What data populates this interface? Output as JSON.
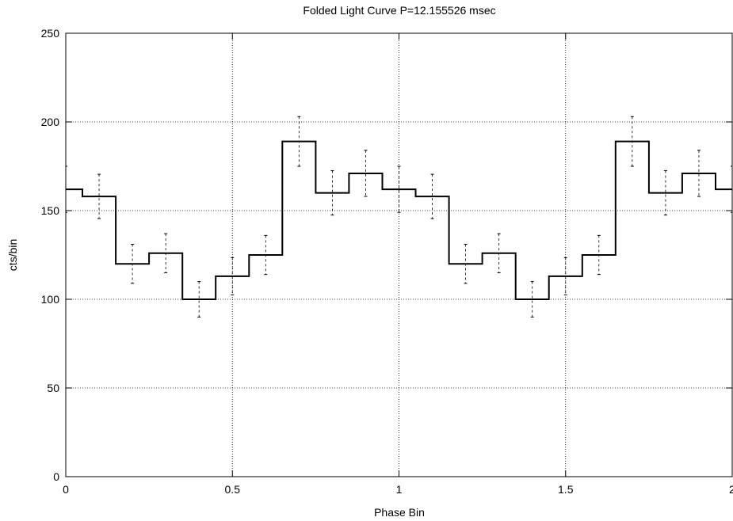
{
  "chart_data": {
    "type": "line",
    "step": true,
    "title": "Folded Light Curve P=12.155526 msec",
    "xlabel": "Phase Bin",
    "ylabel": "cts/bin",
    "xlim": [
      0,
      2
    ],
    "ylim": [
      0,
      250
    ],
    "xticks": [
      0,
      0.5,
      1,
      1.5,
      2
    ],
    "xtick_labels": [
      "0",
      "0.5",
      "1",
      "1.5",
      "2"
    ],
    "yticks": [
      0,
      50,
      100,
      150,
      200,
      250
    ],
    "ytick_labels": [
      "0",
      "50",
      "100",
      "150",
      "200",
      "250"
    ],
    "grid": true,
    "series": [
      {
        "x": [
          0.0,
          0.1,
          0.2,
          0.3,
          0.4,
          0.5,
          0.6,
          0.7,
          0.8,
          0.9,
          1.0,
          1.1,
          1.2,
          1.3,
          1.4,
          1.5,
          1.6,
          1.7,
          1.8,
          1.9,
          2.0
        ],
        "y": [
          162,
          158,
          120,
          126,
          100,
          113,
          125,
          189,
          160,
          171,
          162,
          158,
          120,
          126,
          100,
          113,
          125,
          189,
          160,
          171,
          162
        ],
        "err": [
          13,
          12.5,
          11,
          11,
          10,
          10.5,
          11,
          14,
          12.5,
          13,
          13,
          12.5,
          11,
          11,
          10,
          10.5,
          11,
          14,
          12.5,
          13,
          13
        ]
      }
    ]
  }
}
